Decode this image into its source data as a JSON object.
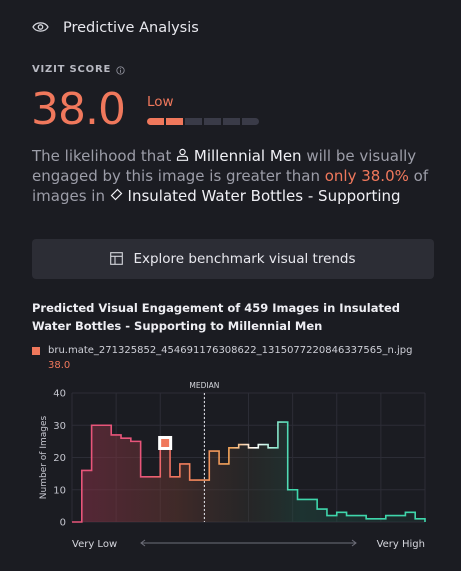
{
  "header": {
    "title": "Predictive Analysis",
    "icon": "eye-icon"
  },
  "score": {
    "label": "VIZIT SCORE",
    "value": "38.0",
    "rating": "Low",
    "segments_total": 6,
    "segments_filled": 2,
    "accent": "#f0785c"
  },
  "description": {
    "part1": "The likelihood that ",
    "audience": "Millennial Men",
    "part2": " will be visually engaged by this image is greater than ",
    "highlight": "only 38.0%",
    "part3": " of images in ",
    "category": "Insulated Water Bottles - Supporting"
  },
  "benchmark_button": {
    "label": "Explore benchmark visual trends"
  },
  "chart_section": {
    "title": "Predicted Visual Engagement of 459 Images in Insulated Water Bottles - Supporting to Millennial Men",
    "legend_file": "bru.mate_271325852_454691176308622_1315077220846337565_n.jpg",
    "legend_value": "38.0"
  },
  "chart_data": {
    "type": "line",
    "ylabel": "Number of Images",
    "ylim": [
      0,
      40
    ],
    "yticks": [
      "0",
      "10",
      "20",
      "30",
      "40"
    ],
    "median_label": "MEDIAN",
    "x_low_label": "Very Low",
    "x_high_label": "Very High",
    "values": [
      0,
      16,
      30,
      30,
      27,
      26,
      25,
      14,
      14,
      24,
      14,
      18,
      13,
      13,
      22,
      18,
      23,
      24,
      23,
      24,
      23,
      31,
      10,
      7,
      7,
      4,
      2,
      3,
      2,
      2,
      1,
      1,
      2,
      2,
      3,
      1,
      0
    ],
    "median_index": 13.5,
    "marker": {
      "index": 9.5,
      "value": 24.5
    },
    "colors": [
      "#e8557a",
      "#f0785c",
      "#f2a55a",
      "#ffffff",
      "#3fd6ab"
    ]
  }
}
